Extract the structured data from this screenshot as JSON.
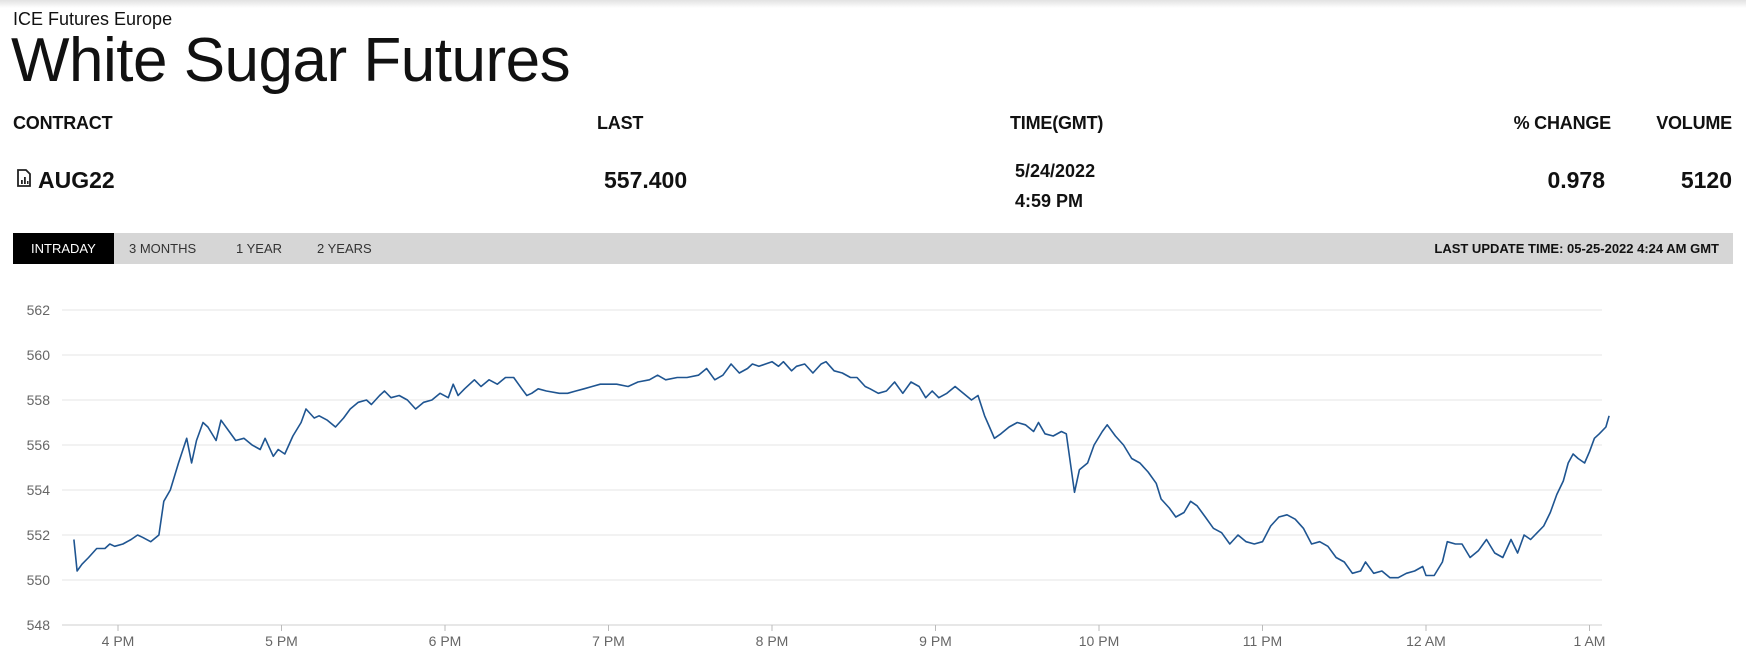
{
  "header": {
    "exchange": "ICE Futures Europe",
    "title": "White Sugar Futures"
  },
  "table": {
    "columns": [
      "CONTRACT",
      "LAST",
      "TIME(GMT)",
      "% CHANGE",
      "VOLUME"
    ],
    "row": {
      "contract": "AUG22",
      "contract_icon": "chart-document-icon",
      "last": "557.400",
      "date": "5/24/2022",
      "time": "4:59 PM",
      "pct_change": "0.978",
      "volume": "5120"
    }
  },
  "tabs": [
    "INTRADAY",
    "3 MONTHS",
    "1 YEAR",
    "2 YEARS"
  ],
  "active_tab": "INTRADAY",
  "last_update": "LAST UPDATE TIME: 05-25-2022 4:24 AM GMT",
  "colors": {
    "line": "#1f5591",
    "grid": "#e6e6e6",
    "tabbar": "#d6d6d6",
    "active_tab": "#000000"
  },
  "chart_data": {
    "type": "line",
    "title": "",
    "xlabel": "",
    "ylabel": "",
    "ylim": [
      548,
      562
    ],
    "yticks": [
      562,
      560,
      558,
      556,
      554,
      552,
      550,
      548
    ],
    "xlim": [
      15.6,
      25.1
    ],
    "xticks": [
      {
        "t": 16,
        "label": "4 PM"
      },
      {
        "t": 17,
        "label": "5 PM"
      },
      {
        "t": 18,
        "label": "6 PM"
      },
      {
        "t": 19,
        "label": "7 PM"
      },
      {
        "t": 20,
        "label": "8 PM"
      },
      {
        "t": 21,
        "label": "9 PM"
      },
      {
        "t": 22,
        "label": "10 PM"
      },
      {
        "t": 23,
        "label": "11 PM"
      },
      {
        "t": 24,
        "label": "12 AM"
      },
      {
        "t": 25,
        "label": "1 AM"
      }
    ],
    "grid": true,
    "series": [
      {
        "points": [
          [
            15.73,
            551.8
          ],
          [
            15.75,
            550.4
          ],
          [
            15.78,
            550.7
          ],
          [
            15.82,
            551.0
          ],
          [
            15.87,
            551.4
          ],
          [
            15.92,
            551.4
          ],
          [
            15.95,
            551.6
          ],
          [
            15.98,
            551.5
          ],
          [
            16.03,
            551.6
          ],
          [
            16.08,
            551.8
          ],
          [
            16.12,
            552.0
          ],
          [
            16.15,
            551.9
          ],
          [
            16.2,
            551.7
          ],
          [
            16.25,
            552.0
          ],
          [
            16.28,
            553.5
          ],
          [
            16.32,
            554.0
          ],
          [
            16.37,
            555.2
          ],
          [
            16.42,
            556.3
          ],
          [
            16.45,
            555.2
          ],
          [
            16.48,
            556.2
          ],
          [
            16.52,
            557.0
          ],
          [
            16.55,
            556.8
          ],
          [
            16.6,
            556.2
          ],
          [
            16.63,
            557.1
          ],
          [
            16.68,
            556.6
          ],
          [
            16.72,
            556.2
          ],
          [
            16.77,
            556.3
          ],
          [
            16.82,
            556.0
          ],
          [
            16.87,
            555.8
          ],
          [
            16.9,
            556.3
          ],
          [
            16.95,
            555.5
          ],
          [
            16.98,
            555.8
          ],
          [
            17.02,
            555.6
          ],
          [
            17.07,
            556.4
          ],
          [
            17.12,
            557.0
          ],
          [
            17.15,
            557.6
          ],
          [
            17.2,
            557.2
          ],
          [
            17.23,
            557.3
          ],
          [
            17.28,
            557.1
          ],
          [
            17.33,
            556.8
          ],
          [
            17.38,
            557.2
          ],
          [
            17.42,
            557.6
          ],
          [
            17.47,
            557.9
          ],
          [
            17.52,
            558.0
          ],
          [
            17.55,
            557.8
          ],
          [
            17.6,
            558.2
          ],
          [
            17.63,
            558.4
          ],
          [
            17.67,
            558.1
          ],
          [
            17.72,
            558.2
          ],
          [
            17.77,
            558.0
          ],
          [
            17.82,
            557.6
          ],
          [
            17.87,
            557.9
          ],
          [
            17.92,
            558.0
          ],
          [
            17.97,
            558.3
          ],
          [
            18.02,
            558.1
          ],
          [
            18.05,
            558.7
          ],
          [
            18.08,
            558.2
          ],
          [
            18.12,
            558.5
          ],
          [
            18.18,
            558.9
          ],
          [
            18.22,
            558.6
          ],
          [
            18.27,
            558.9
          ],
          [
            18.32,
            558.7
          ],
          [
            18.37,
            559.0
          ],
          [
            18.42,
            559.0
          ],
          [
            18.47,
            558.5
          ],
          [
            18.5,
            558.2
          ],
          [
            18.53,
            558.3
          ],
          [
            18.57,
            558.5
          ],
          [
            18.62,
            558.4
          ],
          [
            18.7,
            558.3
          ],
          [
            18.75,
            558.3
          ],
          [
            18.8,
            558.4
          ],
          [
            18.85,
            558.5
          ],
          [
            18.9,
            558.6
          ],
          [
            18.95,
            558.7
          ],
          [
            19.05,
            558.7
          ],
          [
            19.12,
            558.6
          ],
          [
            19.18,
            558.8
          ],
          [
            19.25,
            558.9
          ],
          [
            19.3,
            559.1
          ],
          [
            19.35,
            558.9
          ],
          [
            19.42,
            559.0
          ],
          [
            19.48,
            559.0
          ],
          [
            19.55,
            559.1
          ],
          [
            19.6,
            559.4
          ],
          [
            19.65,
            558.9
          ],
          [
            19.7,
            559.1
          ],
          [
            19.75,
            559.6
          ],
          [
            19.8,
            559.2
          ],
          [
            19.85,
            559.4
          ],
          [
            19.88,
            559.6
          ],
          [
            19.92,
            559.5
          ],
          [
            19.96,
            559.6
          ],
          [
            20.0,
            559.7
          ],
          [
            20.04,
            559.5
          ],
          [
            20.07,
            559.7
          ],
          [
            20.12,
            559.3
          ],
          [
            20.15,
            559.5
          ],
          [
            20.2,
            559.6
          ],
          [
            20.25,
            559.2
          ],
          [
            20.3,
            559.6
          ],
          [
            20.33,
            559.7
          ],
          [
            20.38,
            559.3
          ],
          [
            20.43,
            559.2
          ],
          [
            20.48,
            559.0
          ],
          [
            20.52,
            559.0
          ],
          [
            20.57,
            558.6
          ],
          [
            20.6,
            558.5
          ],
          [
            20.65,
            558.3
          ],
          [
            20.7,
            558.4
          ],
          [
            20.75,
            558.8
          ],
          [
            20.8,
            558.3
          ],
          [
            20.85,
            558.8
          ],
          [
            20.9,
            558.6
          ],
          [
            20.94,
            558.1
          ],
          [
            20.98,
            558.4
          ],
          [
            21.02,
            558.1
          ],
          [
            21.07,
            558.3
          ],
          [
            21.12,
            558.6
          ],
          [
            21.17,
            558.3
          ],
          [
            21.22,
            558.0
          ],
          [
            21.26,
            558.2
          ],
          [
            21.3,
            557.3
          ],
          [
            21.33,
            556.8
          ],
          [
            21.36,
            556.3
          ],
          [
            21.4,
            556.5
          ],
          [
            21.45,
            556.8
          ],
          [
            21.5,
            557.0
          ],
          [
            21.55,
            556.9
          ],
          [
            21.6,
            556.6
          ],
          [
            21.63,
            557.0
          ],
          [
            21.67,
            556.5
          ],
          [
            21.72,
            556.4
          ],
          [
            21.77,
            556.6
          ],
          [
            21.8,
            556.5
          ],
          [
            21.85,
            553.9
          ],
          [
            21.88,
            554.9
          ],
          [
            21.93,
            555.2
          ],
          [
            21.97,
            556.0
          ],
          [
            22.02,
            556.6
          ],
          [
            22.05,
            556.9
          ],
          [
            22.1,
            556.4
          ],
          [
            22.15,
            556.0
          ],
          [
            22.2,
            555.4
          ],
          [
            22.25,
            555.2
          ],
          [
            22.3,
            554.8
          ],
          [
            22.35,
            554.3
          ],
          [
            22.38,
            553.6
          ],
          [
            22.43,
            553.2
          ],
          [
            22.47,
            552.8
          ],
          [
            22.52,
            553.0
          ],
          [
            22.56,
            553.5
          ],
          [
            22.6,
            553.3
          ],
          [
            22.65,
            552.8
          ],
          [
            22.7,
            552.3
          ],
          [
            22.75,
            552.1
          ],
          [
            22.8,
            551.6
          ],
          [
            22.85,
            552.0
          ],
          [
            22.9,
            551.7
          ],
          [
            22.95,
            551.6
          ],
          [
            23.0,
            551.7
          ],
          [
            23.05,
            552.4
          ],
          [
            23.1,
            552.8
          ],
          [
            23.15,
            552.9
          ],
          [
            23.2,
            552.7
          ],
          [
            23.25,
            552.3
          ],
          [
            23.3,
            551.6
          ],
          [
            23.35,
            551.7
          ],
          [
            23.4,
            551.5
          ],
          [
            23.45,
            551.0
          ],
          [
            23.5,
            550.8
          ],
          [
            23.55,
            550.3
          ],
          [
            23.6,
            550.4
          ],
          [
            23.63,
            550.8
          ],
          [
            23.68,
            550.3
          ],
          [
            23.73,
            550.4
          ],
          [
            23.78,
            550.1
          ],
          [
            23.83,
            550.1
          ],
          [
            23.88,
            550.3
          ],
          [
            23.93,
            550.4
          ],
          [
            23.98,
            550.6
          ],
          [
            24.0,
            550.2
          ],
          [
            24.05,
            550.2
          ],
          [
            24.1,
            550.8
          ],
          [
            24.13,
            551.7
          ],
          [
            24.18,
            551.6
          ],
          [
            24.22,
            551.6
          ],
          [
            24.27,
            551.0
          ],
          [
            24.32,
            551.3
          ],
          [
            24.37,
            551.8
          ],
          [
            24.42,
            551.2
          ],
          [
            24.47,
            551.0
          ],
          [
            24.52,
            551.8
          ],
          [
            24.56,
            551.2
          ],
          [
            24.6,
            552.0
          ],
          [
            24.64,
            551.8
          ],
          [
            24.68,
            552.1
          ],
          [
            24.72,
            552.4
          ],
          [
            24.76,
            553.0
          ],
          [
            24.8,
            553.8
          ],
          [
            24.84,
            554.4
          ],
          [
            24.87,
            555.2
          ],
          [
            24.9,
            555.6
          ],
          [
            24.93,
            555.4
          ],
          [
            24.97,
            555.2
          ],
          [
            25.0,
            555.7
          ],
          [
            25.03,
            556.3
          ],
          [
            25.06,
            556.5
          ],
          [
            25.1,
            556.8
          ],
          [
            25.12,
            557.3
          ]
        ]
      }
    ]
  }
}
